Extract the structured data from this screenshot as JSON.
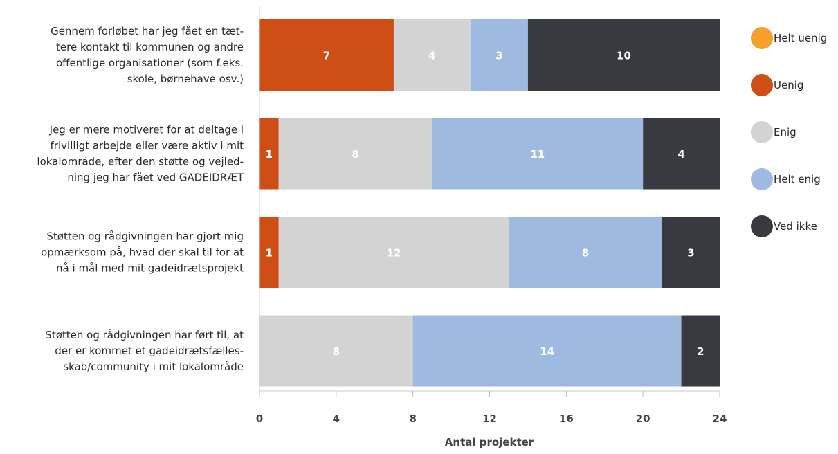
{
  "chart_data": {
    "type": "bar",
    "orientation": "horizontal",
    "stacked": true,
    "categories": [
      [
        "Gennem forløbet har jeg fået en tæt-",
        "tere kontakt til kommunen og andre",
        "offentlige organisationer (som f.eks.",
        "skole, børnehave osv.)"
      ],
      [
        "Jeg er mere motiveret for at deltage i",
        "frivilligt arbejde eller være aktiv i mit",
        "lokalområde, efter den støtte og vejled-",
        "ning jeg har fået ved GADEIDRÆT"
      ],
      [
        "Støtten og rådgivningen har gjort mig",
        "opmærksom på, hvad der skal til for at",
        "nå i mål med mit gadeidrætsprojekt"
      ],
      [
        "Støtten og rådgivningen har ført til, at",
        "der er kommet et gadeidrætsfælles-",
        "skab/community i mit lokalområde"
      ]
    ],
    "series": [
      {
        "name": "Helt uenig",
        "color": "#F5A02A",
        "values": [
          0,
          0,
          0,
          0
        ]
      },
      {
        "name": "Uenig",
        "color": "#CF4E16",
        "values": [
          7,
          1,
          1,
          0
        ]
      },
      {
        "name": "Enig",
        "color": "#D3D3D3",
        "values": [
          4,
          8,
          12,
          8
        ]
      },
      {
        "name": "Helt enig",
        "color": "#9FBAE0",
        "values": [
          3,
          11,
          8,
          14
        ]
      },
      {
        "name": "Ved ikke",
        "color": "#393A40",
        "values": [
          10,
          4,
          3,
          2
        ]
      }
    ],
    "xlabel": "Antal projekter",
    "xlim": [
      0,
      24
    ],
    "xticks": [
      0,
      4,
      8,
      12,
      16,
      20,
      24
    ],
    "legend_position": "right",
    "grid": false,
    "data_labels": true
  }
}
